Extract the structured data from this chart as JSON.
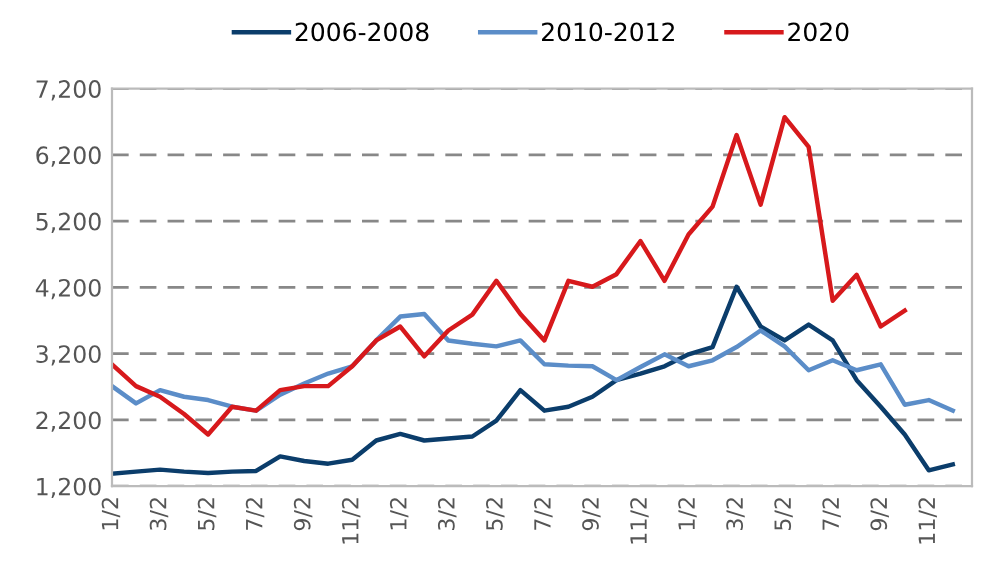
{
  "chart_data": {
    "type": "line",
    "categories": [
      "1/2",
      null,
      "3/2",
      null,
      "5/2",
      null,
      "7/2",
      null,
      "9/2",
      null,
      "11/2",
      null,
      "1/2",
      null,
      "3/2",
      null,
      "5/2",
      null,
      "7/2",
      null,
      "9/2",
      null,
      "11/2",
      null,
      "1/2",
      null,
      "3/2",
      null,
      "5/2",
      null,
      "7/2",
      null,
      "9/2",
      null,
      "11/2",
      null
    ],
    "series": [
      {
        "name": "2006-2008",
        "color": "#0b3d6b",
        "values": [
          1390,
          1420,
          1450,
          1420,
          1400,
          1420,
          1430,
          1650,
          1580,
          1540,
          1600,
          1890,
          1990,
          1890,
          1920,
          1950,
          2190,
          2650,
          2340,
          2400,
          2550,
          2800,
          2900,
          3010,
          3190,
          3300,
          4210,
          3610,
          3400,
          3640,
          3400,
          2800,
          2400,
          1980,
          1440,
          1530
        ]
      },
      {
        "name": "2010-2012",
        "color": "#5b8dc8",
        "values": [
          2710,
          2450,
          2650,
          2550,
          2500,
          2400,
          2340,
          2580,
          2750,
          2900,
          3010,
          3400,
          3760,
          3800,
          3400,
          3350,
          3310,
          3400,
          3040,
          3020,
          3010,
          2800,
          3000,
          3190,
          3010,
          3100,
          3300,
          3550,
          3310,
          2950,
          3100,
          2950,
          3040,
          2430,
          2500,
          2340
        ]
      },
      {
        "name": "2020",
        "color": "#d7191c",
        "values": [
          3040,
          2710,
          2550,
          2290,
          1980,
          2400,
          2340,
          2650,
          2710,
          2710,
          3010,
          3400,
          3610,
          3160,
          3550,
          3790,
          4300,
          3800,
          3400,
          4300,
          4210,
          4400,
          4900,
          4300,
          5000,
          5420,
          6500,
          5450,
          6770,
          6320,
          4000,
          4390,
          3610,
          3850,
          null,
          null
        ]
      }
    ],
    "ylim": [
      1200,
      7200
    ],
    "yticks": [
      {
        "value": 1200,
        "label": "1,200"
      },
      {
        "value": 2200,
        "label": "2,200"
      },
      {
        "value": 3200,
        "label": "3,200"
      },
      {
        "value": 4200,
        "label": "4,200"
      },
      {
        "value": 5200,
        "label": "5,200"
      },
      {
        "value": 6200,
        "label": "6,200"
      },
      {
        "value": 7200,
        "label": "7,200"
      }
    ],
    "grid": "y",
    "legend": "top",
    "marker": "none",
    "line_style": "solid"
  }
}
